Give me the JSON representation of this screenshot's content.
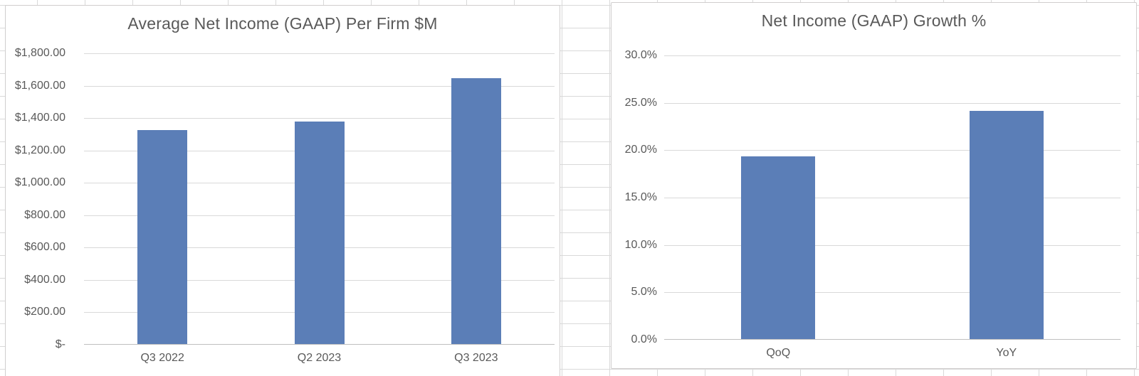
{
  "app": {
    "context": "spreadsheet-worksheet-with-embedded-charts",
    "background_color": "#ffffff",
    "worksheet_gridline_color": "#d9d9d9"
  },
  "colors": {
    "bar_fill": "#5b7eb7",
    "chart_text": "#595959",
    "chart_gridline": "#d9d9d9",
    "axis_line": "#bfbfbf",
    "chart_border": "#d0cece"
  },
  "chart_data": [
    {
      "type": "bar",
      "title": "Average Net Income (GAAP) Per Firm $M",
      "categories": [
        "Q3 2022",
        "Q2 2023",
        "Q3 2023"
      ],
      "values": [
        1322,
        1375,
        1640
      ],
      "ylim": [
        0,
        1800
      ],
      "ytick_step": 200,
      "ytick_labels": [
        "$1,800.00",
        "$1,600.00",
        "$1,400.00",
        "$1,200.00",
        "$1,000.00",
        "$800.00",
        "$600.00",
        "$400.00",
        "$200.00",
        "$-"
      ],
      "xlabel": "",
      "ylabel": "",
      "grid": true,
      "legend": false,
      "bar_color": "#5b7eb7"
    },
    {
      "type": "bar",
      "title": "Net Income (GAAP) Growth %",
      "categories": [
        "QoQ",
        "YoY"
      ],
      "values": [
        19.3,
        24.1
      ],
      "ylim": [
        0,
        30
      ],
      "ytick_step": 5,
      "ytick_labels": [
        "30.0%",
        "25.0%",
        "20.0%",
        "15.0%",
        "10.0%",
        "5.0%",
        "0.0%"
      ],
      "xlabel": "",
      "ylabel": "",
      "grid": true,
      "legend": false,
      "bar_color": "#5b7eb7"
    }
  ]
}
